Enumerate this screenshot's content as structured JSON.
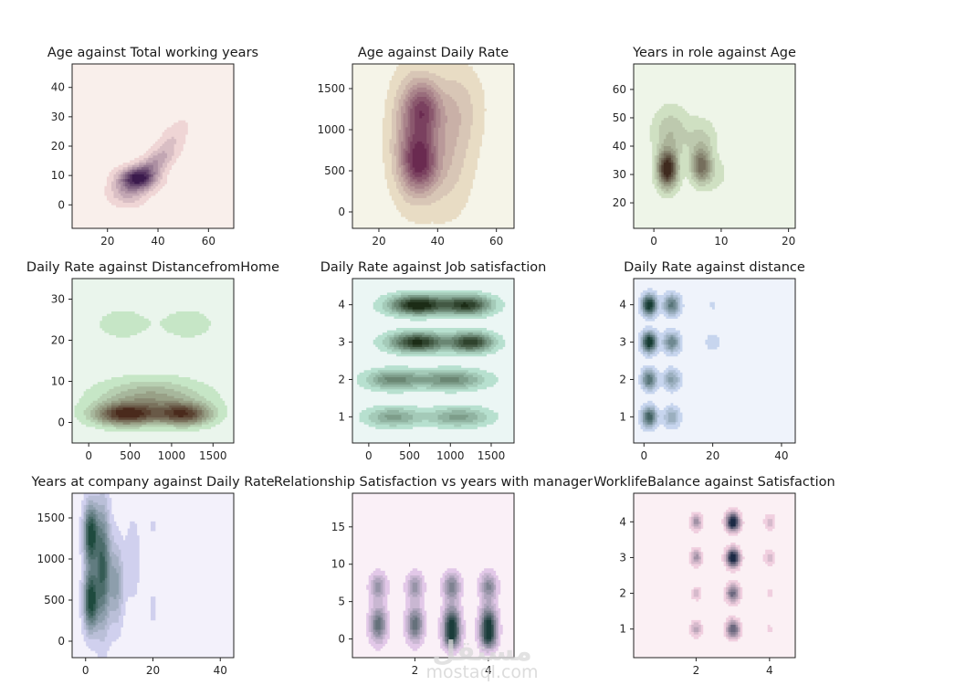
{
  "chart_data": [
    {
      "type": "kde-contour",
      "title": "Age against Total working years",
      "xlim": [
        6,
        70
      ],
      "ylim": [
        -8,
        48
      ],
      "x_ticks": [
        20,
        40,
        60
      ],
      "y_ticks": [
        0,
        10,
        20,
        30,
        40
      ],
      "colors": {
        "background": "#f9efeb",
        "light": "#efd5d5",
        "dark": "#3b1a4d"
      },
      "blobs": [
        {
          "x": 32,
          "y": 9,
          "sx": 5,
          "sy": 2.5,
          "w": 1.0
        },
        {
          "x": 37,
          "y": 13,
          "sx": 6,
          "sy": 4,
          "w": 0.45,
          "rho": 0.7
        },
        {
          "x": 45,
          "y": 22,
          "sx": 5,
          "sy": 5,
          "w": 0.2,
          "rho": 0.7
        },
        {
          "x": 28,
          "y": 4,
          "sx": 5,
          "sy": 3,
          "w": 0.35
        }
      ]
    },
    {
      "type": "kde-contour",
      "title": "Age against Daily Rate",
      "xlim": [
        11,
        66
      ],
      "ylim": [
        -200,
        1800
      ],
      "x_ticks": [
        20,
        40,
        60
      ],
      "y_ticks": [
        0,
        500,
        1000,
        1500
      ],
      "colors": {
        "background": "#f5f4e8",
        "light": "#e8dcc4",
        "dark": "#6a2a50"
      },
      "blobs": [
        {
          "x": 34,
          "y": 600,
          "sx": 4,
          "sy": 230,
          "w": 1.0
        },
        {
          "x": 35,
          "y": 1250,
          "sx": 4,
          "sy": 230,
          "w": 0.85
        },
        {
          "x": 31,
          "y": 900,
          "sx": 5,
          "sy": 500,
          "w": 0.6
        },
        {
          "x": 43,
          "y": 700,
          "sx": 6,
          "sy": 500,
          "w": 0.35
        },
        {
          "x": 47,
          "y": 1300,
          "sx": 6,
          "sy": 350,
          "w": 0.25
        }
      ]
    },
    {
      "type": "kde-contour",
      "title": "Years in role against Age",
      "xlim": [
        -3,
        21
      ],
      "ylim": [
        11,
        69
      ],
      "x_ticks": [
        0,
        10,
        20
      ],
      "y_ticks": [
        20,
        30,
        40,
        50,
        60
      ],
      "colors": {
        "background": "#eef5e8",
        "light": "#cfe0c2",
        "dark": "#3f2a1e"
      },
      "blobs": [
        {
          "x": 2,
          "y": 32,
          "sx": 1.0,
          "sy": 4.5,
          "w": 1.0
        },
        {
          "x": 7,
          "y": 33,
          "sx": 1.0,
          "sy": 4,
          "w": 0.6
        },
        {
          "x": 2.5,
          "y": 45,
          "sx": 1.8,
          "sy": 6,
          "w": 0.25
        },
        {
          "x": 7,
          "y": 42,
          "sx": 1.5,
          "sy": 5,
          "w": 0.2
        },
        {
          "x": 9,
          "y": 30,
          "sx": 1.5,
          "sy": 4,
          "w": 0.1
        }
      ]
    },
    {
      "type": "kde-contour",
      "title": "Daily Rate against DistancefromHome",
      "xlim": [
        -200,
        1750
      ],
      "ylim": [
        -5,
        35
      ],
      "x_ticks": [
        0,
        500,
        1000,
        1500
      ],
      "y_ticks": [
        0,
        10,
        20,
        30
      ],
      "colors": {
        "background": "#eaf5ec",
        "light": "#c6e6c6",
        "dark": "#4a2a1c"
      },
      "blobs": [
        {
          "x": 450,
          "y": 2,
          "sx": 260,
          "sy": 1.8,
          "w": 1.0
        },
        {
          "x": 1150,
          "y": 2,
          "sx": 220,
          "sy": 1.8,
          "w": 0.9
        },
        {
          "x": 750,
          "y": 6,
          "sx": 420,
          "sy": 3,
          "w": 0.45
        },
        {
          "x": 400,
          "y": 24,
          "sx": 250,
          "sy": 3,
          "w": 0.12
        },
        {
          "x": 1200,
          "y": 24,
          "sx": 250,
          "sy": 3,
          "w": 0.12
        }
      ]
    },
    {
      "type": "kde-contour",
      "title": "Daily Rate against Job satisfaction",
      "xlim": [
        -200,
        1780
      ],
      "ylim": [
        0.3,
        4.7
      ],
      "x_ticks": [
        0,
        500,
        1000,
        1500
      ],
      "y_ticks": [
        1,
        2,
        3,
        4
      ],
      "colors": {
        "background": "#ebf6f4",
        "light": "#b7e0cf",
        "dark": "#1c2c16"
      },
      "blobs": [
        {
          "x": 600,
          "y": 4,
          "sx": 230,
          "sy": 0.17,
          "w": 1.0
        },
        {
          "x": 1200,
          "y": 4,
          "sx": 200,
          "sy": 0.17,
          "w": 0.85
        },
        {
          "x": 600,
          "y": 3,
          "sx": 230,
          "sy": 0.17,
          "w": 0.9
        },
        {
          "x": 1250,
          "y": 3,
          "sx": 180,
          "sy": 0.17,
          "w": 0.85
        },
        {
          "x": 300,
          "y": 2,
          "sx": 220,
          "sy": 0.17,
          "w": 0.5
        },
        {
          "x": 1000,
          "y": 2,
          "sx": 280,
          "sy": 0.17,
          "w": 0.5
        },
        {
          "x": 300,
          "y": 1,
          "sx": 220,
          "sy": 0.17,
          "w": 0.4
        },
        {
          "x": 1100,
          "y": 1,
          "sx": 250,
          "sy": 0.17,
          "w": 0.4
        }
      ]
    },
    {
      "type": "kde-contour",
      "title": "Daily Rate against distance",
      "xlim": [
        -3,
        44
      ],
      "ylim": [
        0.3,
        4.7
      ],
      "x_ticks": [
        0,
        20,
        40
      ],
      "y_ticks": [
        1,
        2,
        3,
        4
      ],
      "colors": {
        "background": "#eff3fb",
        "light": "#c7d5ee",
        "dark": "#163c33"
      },
      "blobs": [
        {
          "x": 1.5,
          "y": 4,
          "sx": 1.4,
          "sy": 0.18,
          "w": 1.0
        },
        {
          "x": 8,
          "y": 4,
          "sx": 1.6,
          "sy": 0.18,
          "w": 0.6
        },
        {
          "x": 1.5,
          "y": 3,
          "sx": 1.4,
          "sy": 0.18,
          "w": 1.0
        },
        {
          "x": 8,
          "y": 3,
          "sx": 1.6,
          "sy": 0.18,
          "w": 0.55
        },
        {
          "x": 1.5,
          "y": 2,
          "sx": 1.4,
          "sy": 0.18,
          "w": 0.65
        },
        {
          "x": 8,
          "y": 2,
          "sx": 1.6,
          "sy": 0.18,
          "w": 0.4
        },
        {
          "x": 1.5,
          "y": 1,
          "sx": 1.4,
          "sy": 0.18,
          "w": 0.75
        },
        {
          "x": 8,
          "y": 1,
          "sx": 1.6,
          "sy": 0.18,
          "w": 0.35
        },
        {
          "x": 20,
          "y": 3,
          "sx": 1.5,
          "sy": 0.15,
          "w": 0.15
        },
        {
          "x": 20,
          "y": 4,
          "sx": 0.8,
          "sy": 0.1,
          "w": 0.1
        }
      ]
    },
    {
      "type": "kde-contour",
      "title": "Years at company against Daily Rate",
      "xlim": [
        -4,
        44
      ],
      "ylim": [
        -200,
        1800
      ],
      "x_ticks": [
        0,
        20,
        40
      ],
      "y_ticks": [
        0,
        500,
        1000,
        1500
      ],
      "colors": {
        "background": "#f3f1fb",
        "light": "#d0d0ee",
        "dark": "#1e4a3e"
      },
      "blobs": [
        {
          "x": 1.5,
          "y": 1300,
          "sx": 1.4,
          "sy": 250,
          "w": 1.0
        },
        {
          "x": 1.5,
          "y": 500,
          "sx": 1.4,
          "sy": 250,
          "w": 1.0
        },
        {
          "x": 5,
          "y": 900,
          "sx": 1.5,
          "sy": 500,
          "w": 0.8
        },
        {
          "x": 9,
          "y": 700,
          "sx": 1.5,
          "sy": 350,
          "w": 0.4
        },
        {
          "x": 14,
          "y": 1000,
          "sx": 1.5,
          "sy": 350,
          "w": 0.15
        },
        {
          "x": 20,
          "y": 400,
          "sx": 1.2,
          "sy": 200,
          "w": 0.08
        },
        {
          "x": 20,
          "y": 1400,
          "sx": 1.2,
          "sy": 100,
          "w": 0.08
        }
      ]
    },
    {
      "type": "kde-contour",
      "title": "Relationship Satisfaction vs years with manager",
      "xlim": [
        0.3,
        4.7
      ],
      "ylim": [
        -2.5,
        19.5
      ],
      "x_ticks": [
        2,
        4
      ],
      "y_ticks": [
        0,
        5,
        10,
        15
      ],
      "colors": {
        "background": "#faf0f7",
        "light": "#e2c8e8",
        "dark": "#1a3c3a"
      },
      "blobs": [
        {
          "x": 1,
          "y": 2,
          "sx": 0.15,
          "sy": 1.6,
          "w": 0.7
        },
        {
          "x": 2,
          "y": 2,
          "sx": 0.15,
          "sy": 1.6,
          "w": 0.7
        },
        {
          "x": 3,
          "y": 2,
          "sx": 0.15,
          "sy": 1.6,
          "w": 1.0
        },
        {
          "x": 4,
          "y": 2,
          "sx": 0.15,
          "sy": 1.6,
          "w": 1.0
        },
        {
          "x": 1,
          "y": 7,
          "sx": 0.15,
          "sy": 1.2,
          "w": 0.45
        },
        {
          "x": 2,
          "y": 7,
          "sx": 0.15,
          "sy": 1.2,
          "w": 0.45
        },
        {
          "x": 3,
          "y": 7,
          "sx": 0.15,
          "sy": 1.2,
          "w": 0.6
        },
        {
          "x": 4,
          "y": 7,
          "sx": 0.15,
          "sy": 1.2,
          "w": 0.55
        },
        {
          "x": 3,
          "y": 0,
          "sx": 0.15,
          "sy": 1.0,
          "w": 0.5
        },
        {
          "x": 4,
          "y": 0,
          "sx": 0.15,
          "sy": 1.0,
          "w": 0.5
        }
      ]
    },
    {
      "type": "kde-contour",
      "title": "WorklifeBalance against Satisfaction",
      "xlim": [
        0.3,
        4.7
      ],
      "ylim": [
        0.2,
        4.8
      ],
      "x_ticks": [
        2,
        4
      ],
      "y_ticks": [
        1,
        2,
        3,
        4
      ],
      "colors": {
        "background": "#fbf0f4",
        "light": "#f0cfdf",
        "dark": "#1c2a45"
      },
      "blobs": [
        {
          "x": 3,
          "y": 4,
          "sx": 0.12,
          "sy": 0.17,
          "w": 1.0
        },
        {
          "x": 3,
          "y": 3,
          "sx": 0.12,
          "sy": 0.17,
          "w": 1.0
        },
        {
          "x": 3,
          "y": 2,
          "sx": 0.12,
          "sy": 0.17,
          "w": 0.6
        },
        {
          "x": 3,
          "y": 1,
          "sx": 0.12,
          "sy": 0.17,
          "w": 0.65
        },
        {
          "x": 2,
          "y": 4,
          "sx": 0.1,
          "sy": 0.15,
          "w": 0.4
        },
        {
          "x": 2,
          "y": 3,
          "sx": 0.1,
          "sy": 0.15,
          "w": 0.4
        },
        {
          "x": 2,
          "y": 2,
          "sx": 0.08,
          "sy": 0.12,
          "w": 0.22
        },
        {
          "x": 2,
          "y": 1,
          "sx": 0.1,
          "sy": 0.15,
          "w": 0.3
        },
        {
          "x": 4,
          "y": 4,
          "sx": 0.1,
          "sy": 0.15,
          "w": 0.2
        },
        {
          "x": 4,
          "y": 3,
          "sx": 0.1,
          "sy": 0.15,
          "w": 0.2
        },
        {
          "x": 4,
          "y": 2,
          "sx": 0.06,
          "sy": 0.1,
          "w": 0.1
        },
        {
          "x": 4,
          "y": 1,
          "sx": 0.06,
          "sy": 0.1,
          "w": 0.1
        }
      ]
    }
  ],
  "watermark": {
    "logo": "مستقل",
    "text": "mostaql.com"
  }
}
